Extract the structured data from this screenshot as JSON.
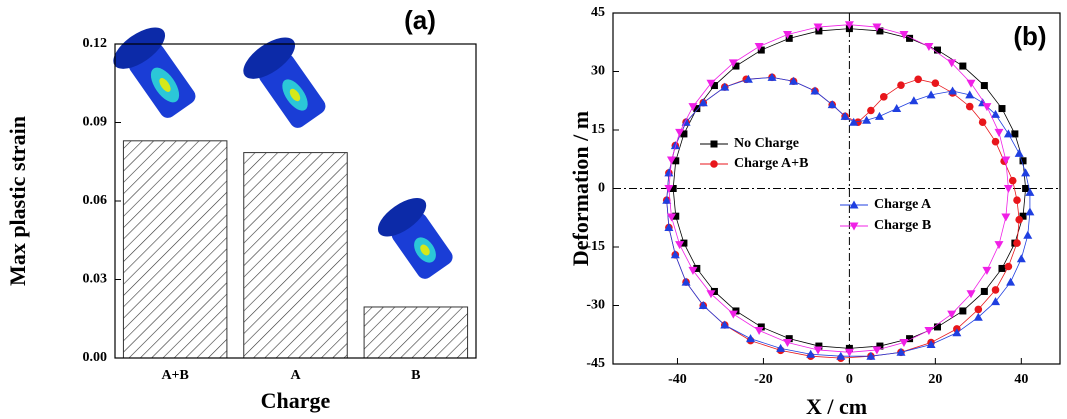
{
  "chart_data": [
    {
      "type": "bar",
      "annotation": "(a)",
      "ylabel": "Max plastic strain",
      "xlabel": "Charge",
      "categories": [
        "A+B",
        "A",
        "B"
      ],
      "values": [
        0.083,
        0.0785,
        0.0195
      ],
      "color": "#333333",
      "hatch": true,
      "ylim": [
        0,
        0.12
      ],
      "yticks": [
        {
          "value": 0,
          "label": "0.00"
        },
        0.03,
        0.06,
        0.09,
        0.12
      ]
    },
    {
      "type": "line",
      "annotation": "(b)",
      "ylabel": "Deformation / m",
      "xlabel": "X / cm",
      "closed": true,
      "reference_lines": {
        "x": 0,
        "y": 0
      },
      "xlim": [
        -55,
        49
      ],
      "xticks": [
        -40,
        -20,
        0,
        20,
        40
      ],
      "ylim": [
        -45,
        45
      ],
      "yticks": [
        -45,
        -30,
        -15,
        0,
        15,
        30,
        45
      ],
      "series": [
        {
          "name": "No Charge",
          "color": "#000000",
          "marker": "square",
          "x": [
            41,
            40.4,
            38.5,
            35.5,
            31.4,
            26.4,
            20.5,
            14,
            7.1,
            0,
            -7.1,
            -14,
            -20.5,
            -26.4,
            -31.4,
            -35.5,
            -38.5,
            -40.4,
            -41,
            -40.4,
            -38.5,
            -35.5,
            -31.4,
            -26.4,
            -20.5,
            -14,
            -7.1,
            0,
            7.1,
            14,
            20.5,
            26.4,
            31.4,
            35.5,
            38.5,
            40.4
          ],
          "values": [
            0,
            7.1,
            14,
            20.5,
            26.4,
            31.4,
            35.5,
            38.5,
            40.4,
            41,
            40.4,
            38.5,
            35.5,
            31.4,
            26.4,
            20.5,
            14,
            7.1,
            0,
            -7.1,
            -14,
            -20.5,
            -26.4,
            -31.4,
            -35.5,
            -38.5,
            -40.4,
            -41,
            -40.4,
            -38.5,
            -35.5,
            -31.4,
            -26.4,
            -20.5,
            -14,
            -7.1
          ]
        },
        {
          "name": "Charge A+B",
          "color": "#e8161b",
          "marker": "circle",
          "x": [
            2,
            5,
            8,
            12,
            16,
            20,
            24,
            28,
            31,
            34,
            36,
            38,
            39,
            39.5,
            39,
            37,
            34,
            30,
            25,
            19,
            12,
            5,
            -2,
            -9,
            -16,
            -23,
            -29,
            -34,
            -38,
            -40.5,
            -42,
            -42.5,
            -42,
            -40.5,
            -38,
            -34,
            -29,
            -24,
            -18,
            -13,
            -8,
            -4,
            -1
          ],
          "values": [
            17,
            20,
            23.5,
            26.5,
            28,
            27,
            24.5,
            21,
            17,
            12,
            7,
            2,
            -3,
            -8,
            -14,
            -20,
            -26,
            -31,
            -36,
            -39.5,
            -42,
            -43,
            -43.5,
            -43,
            -41.5,
            -39,
            -35,
            -30,
            -24,
            -17,
            -10,
            -3,
            4,
            11,
            17,
            22,
            26,
            28,
            28.5,
            27.5,
            25,
            21.5,
            18.5
          ]
        },
        {
          "name": "Charge A",
          "color": "#1f3fe0",
          "marker": "triangle-up",
          "x": [
            1,
            4,
            7,
            11,
            15,
            19,
            24,
            28,
            31,
            34,
            37,
            39.5,
            41,
            42,
            42,
            41.5,
            40,
            37.5,
            34,
            30,
            25,
            19,
            12,
            5,
            -2,
            -9,
            -16,
            -23,
            -29,
            -34,
            -38,
            -40.5,
            -42,
            -42.5,
            -42,
            -40.5,
            -38,
            -34,
            -29,
            -23.5,
            -18,
            -13,
            -8,
            -4,
            -1
          ],
          "values": [
            17,
            17.5,
            18.5,
            20.5,
            22.5,
            24,
            25,
            24,
            22,
            19,
            14,
            9,
            4,
            -1,
            -6,
            -12,
            -18,
            -24,
            -29,
            -33,
            -37,
            -40,
            -42,
            -43,
            -43,
            -42.5,
            -41,
            -38.5,
            -35,
            -30,
            -24,
            -17,
            -10,
            -3,
            4,
            11,
            17,
            22,
            26,
            28,
            28.5,
            27.5,
            25,
            21.5,
            18.5
          ]
        },
        {
          "name": "Charge B",
          "color": "#f020e6",
          "marker": "triangle-down",
          "x": [
            37,
            36.4,
            34.8,
            32,
            28.3,
            23.8,
            18.5,
            12.7,
            6.4,
            0,
            -7.3,
            -14.4,
            -21,
            -27,
            -32.2,
            -36.4,
            -39.5,
            -41.4,
            -42,
            -41.4,
            -39.5,
            -36.4,
            -32.2,
            -27,
            -21,
            -14.4,
            -7.3,
            0,
            6.4,
            12.7,
            18.5,
            23.8,
            28.3,
            32,
            34.8,
            36.4
          ],
          "values": [
            0,
            7.3,
            14.4,
            21,
            27,
            32.2,
            36.4,
            39.5,
            41.4,
            42,
            41.4,
            39.5,
            36.4,
            32.2,
            27,
            21,
            14.4,
            7.3,
            0,
            -7.3,
            -14.4,
            -21,
            -27,
            -32.2,
            -36.4,
            -39.5,
            -41.4,
            -42,
            -41.4,
            -39.5,
            -36.4,
            -32.2,
            -27,
            -21,
            -14.4,
            -7.3
          ]
        }
      ]
    }
  ]
}
